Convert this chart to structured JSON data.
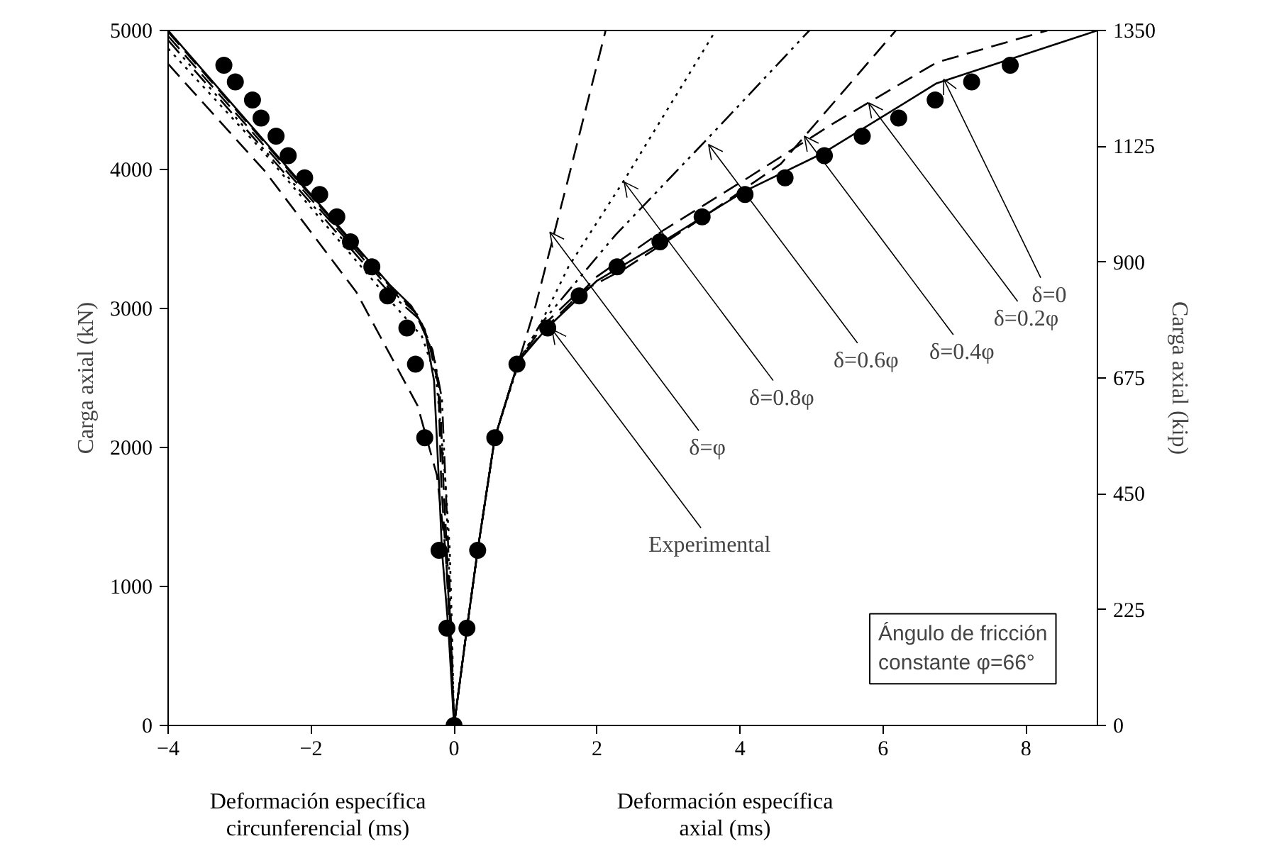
{
  "chart_data": {
    "type": "line",
    "xlabel": "Deformación específica\ncircunferencial (ms)",
    "ylabel": "Carga axial (kN)",
    "y2label": "Carga axial (kip)",
    "xlim": [
      -4,
      9
    ],
    "xticks": [
      -4,
      -2,
      0,
      2,
      4,
      6,
      8
    ],
    "ylim": [
      0,
      5000
    ],
    "yticks": [
      0,
      1000,
      2000,
      3000,
      4000,
      5000
    ],
    "y2lim": [
      0,
      1350
    ],
    "y2ticks": [
      0,
      225,
      450,
      675,
      900,
      1125,
      1350
    ],
    "grid": false,
    "series": [
      {
        "color": "#000000",
        "line_style": "solid",
        "x": [
          -4,
          -0.9,
          -0.6,
          -0.41,
          -0.28,
          -0.21,
          -0.17,
          -0.08,
          0,
          0.18,
          0.33,
          0.57,
          0.9,
          1.3,
          2.0,
          2.92,
          4.05,
          5.17,
          6.75,
          9
        ],
        "values": [
          5000,
          3170,
          3020,
          2850,
          2480,
          1730,
          1260,
          700,
          0,
          700,
          1260,
          2070,
          2620,
          2860,
          3200,
          3480,
          3840,
          4120,
          4620,
          5000
        ]
      },
      {
        "color": "#000000",
        "line_style": "dashed",
        "x": [
          -4,
          -0.9,
          -0.55,
          -0.35,
          -0.22,
          -0.18,
          -0.12,
          -0.06,
          0,
          0.18,
          0.33,
          0.57,
          0.9,
          1.3,
          2.0,
          2.92,
          4.11,
          5.3,
          6.75,
          8.3
        ],
        "values": [
          4990,
          3160,
          2980,
          2750,
          2450,
          1750,
          1260,
          700,
          0,
          700,
          1260,
          2070,
          2620,
          2870,
          3230,
          3560,
          3940,
          4330,
          4770,
          5000
        ]
      },
      {
        "color": "#000000",
        "line_style": "dashed",
        "x": [
          -4,
          -0.9,
          -0.5,
          -0.3,
          -0.2,
          -0.15,
          -0.1,
          -0.05,
          0,
          0.18,
          0.33,
          0.57,
          0.9,
          1.25,
          1.7,
          2.4,
          3.32,
          4.57,
          6.18
        ],
        "values": [
          4960,
          3140,
          2950,
          2700,
          2400,
          1750,
          1260,
          700,
          0,
          700,
          1260,
          2070,
          2620,
          2880,
          3100,
          3290,
          3600,
          4040,
          5000
        ]
      },
      {
        "color": "#000000",
        "line_style": "dashdot",
        "x": [
          -4,
          -0.9,
          -0.48,
          -0.28,
          -0.17,
          -0.12,
          -0.08,
          -0.04,
          0,
          0.18,
          0.33,
          0.57,
          0.9,
          1.2,
          1.54,
          2.26,
          3.58,
          4.97
        ],
        "values": [
          4930,
          3110,
          2920,
          2650,
          2350,
          1750,
          1260,
          700,
          0,
          700,
          1260,
          2070,
          2620,
          2880,
          3090,
          3530,
          4240,
          5000
        ]
      },
      {
        "color": "#000000",
        "line_style": "dotted",
        "x": [
          -4,
          -2.69,
          -0.9,
          -0.45,
          -0.25,
          -0.12,
          -0.06,
          -0.03,
          0,
          0.18,
          0.33,
          0.57,
          0.9,
          1.21,
          1.6,
          2.4,
          3.66
        ],
        "values": [
          4870,
          4140,
          3060,
          2800,
          2500,
          1750,
          1260,
          700,
          0,
          700,
          1260,
          2070,
          2600,
          2890,
          3300,
          3940,
          5000
        ]
      },
      {
        "color": "#000000",
        "line_style": "dashed",
        "x": [
          -4,
          -3.81,
          -2.65,
          -1.37,
          -0.51,
          -0.24,
          -0.12,
          -0.05,
          0,
          0.18,
          0.33,
          0.57,
          0.94,
          1.14,
          1.6,
          2.12
        ],
        "values": [
          4760,
          4650,
          3990,
          3120,
          2300,
          1800,
          1260,
          700,
          0,
          700,
          1260,
          2070,
          2680,
          3020,
          3940,
          5000
        ]
      },
      {
        "type": "scatter",
        "color": "#000000",
        "marker": "circle",
        "x": [
          -3.22,
          -3.06,
          -2.82,
          -2.7,
          -2.49,
          -2.32,
          -2.09,
          -1.88,
          -1.64,
          -1.45,
          -1.15,
          -0.93,
          -0.66,
          -0.54,
          -0.41,
          -0.21,
          -0.1,
          0,
          0.18,
          0.33,
          0.57,
          0.88,
          1.31,
          1.75,
          2.28,
          2.88,
          3.47,
          4.07,
          4.63,
          5.18,
          5.71,
          6.22,
          6.73,
          7.24,
          7.78
        ],
        "values": [
          4750,
          4630,
          4500,
          4370,
          4240,
          4100,
          3940,
          3820,
          3660,
          3480,
          3300,
          3090,
          2860,
          2600,
          2070,
          1260,
          700,
          0,
          700,
          1260,
          2070,
          2600,
          2860,
          3090,
          3300,
          3480,
          3660,
          3820,
          3940,
          4100,
          4240,
          4370,
          4500,
          4630,
          4750
        ]
      }
    ],
    "annotations": [
      "Deformación específica\naxial (ms)",
      "Ángulo de fricción\nconstante φ=66°",
      {
        "text": "δ=0",
        "x": 6.85,
        "y": 4650
      },
      {
        "text": "δ=0.2φ",
        "x": 5.8,
        "y": 4480
      },
      {
        "text": "δ=0.4φ",
        "x": 4.9,
        "y": 4240
      },
      {
        "text": "δ=0.6φ",
        "x": 3.56,
        "y": 4180
      },
      {
        "text": "δ=0.8φ",
        "x": 2.38,
        "y": 3910
      },
      {
        "text": "δ=φ",
        "x": 1.34,
        "y": 3550
      },
      {
        "text": "Experimental",
        "x": 1.37,
        "y": 2850
      }
    ]
  }
}
